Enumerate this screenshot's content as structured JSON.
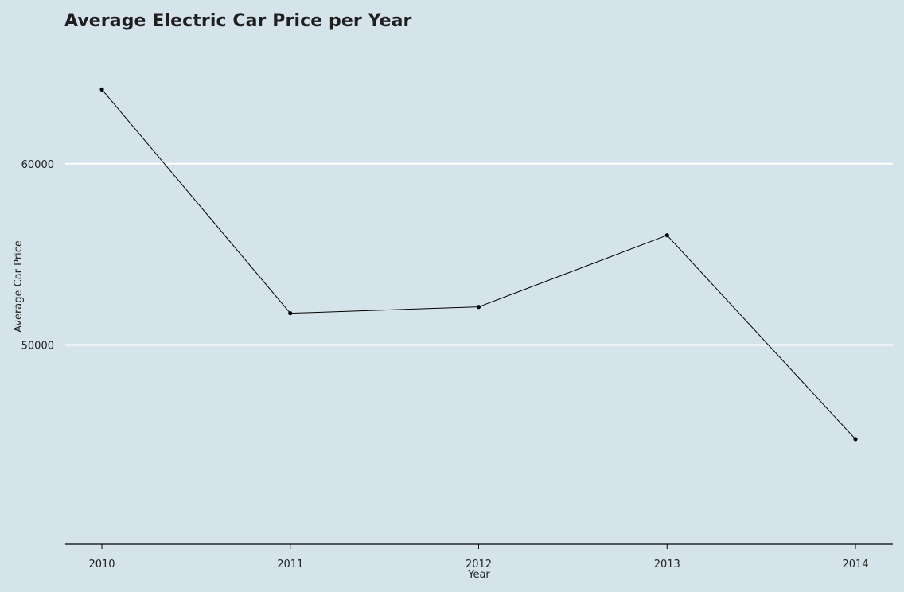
{
  "chart_data": {
    "type": "line",
    "title": "Average Electric Car Price per Year",
    "xlabel": "Year",
    "ylabel": "Average Car Price",
    "x": [
      2010,
      2011,
      2012,
      2013,
      2014
    ],
    "series": [
      {
        "values": [
          64100,
          51750,
          52100,
          56050,
          44800
        ]
      }
    ],
    "yticks": [
      50000,
      60000
    ],
    "ylim": [
      39000,
      66400
    ],
    "grid": "horizontal",
    "colors": {
      "background": "#d5e4eb",
      "gridline": "#ffffff",
      "line": "#000000",
      "axis": "#000000"
    }
  }
}
